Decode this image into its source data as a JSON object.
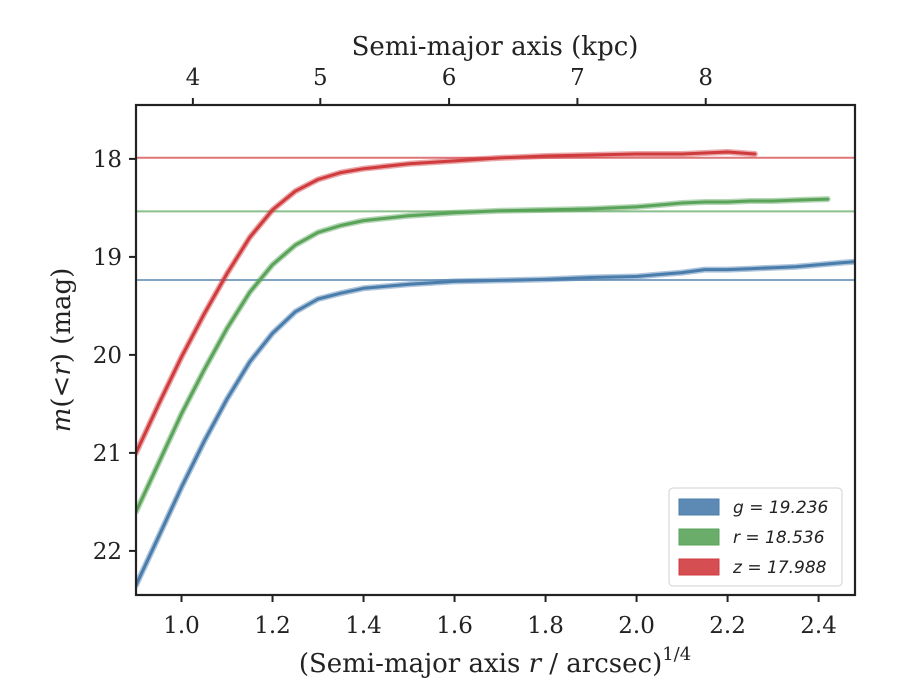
{
  "chart_data": {
    "type": "line",
    "xlabel_pre": "(Semi-major axis ",
    "xlabel_var": "r",
    "xlabel_post": " / arcsec)",
    "xlabel_sup": "1/4",
    "ylabel_var1": "m",
    "ylabel_open": "(",
    "ylabel_lt": "<",
    "ylabel_var2": "r",
    "ylabel_post": ") (mag)",
    "top_xlabel": "Semi-major axis (kpc)",
    "xlim": [
      0.9,
      2.48
    ],
    "ylim": [
      22.45,
      17.45
    ],
    "y_inverted": true,
    "x_ticks": [
      1.0,
      1.2,
      1.4,
      1.6,
      1.8,
      2.0,
      2.2,
      2.4
    ],
    "x_tick_labels": [
      "1.0",
      "1.2",
      "1.4",
      "1.6",
      "1.8",
      "2.0",
      "2.2",
      "2.4"
    ],
    "y_ticks": [
      18,
      19,
      20,
      21,
      22
    ],
    "y_tick_labels": [
      "18",
      "19",
      "20",
      "21",
      "22"
    ],
    "top_ticks": [
      4,
      5,
      6,
      7,
      8
    ],
    "top_tick_labels": [
      "4",
      "5",
      "6",
      "7",
      "8"
    ],
    "top_tick_x_positions": [
      1.025,
      1.305,
      1.588,
      1.87,
      2.152
    ],
    "legend_position": "lower right",
    "series": [
      {
        "name": "g = 19.236",
        "legend_label": "g = 19.236",
        "color": "#4a7dac",
        "asymptote": 19.236,
        "x": [
          0.9,
          0.95,
          1.0,
          1.05,
          1.1,
          1.15,
          1.2,
          1.25,
          1.3,
          1.35,
          1.4,
          1.5,
          1.6,
          1.7,
          1.8,
          1.9,
          2.0,
          2.05,
          2.1,
          2.15,
          2.2,
          2.25,
          2.3,
          2.35,
          2.4,
          2.45,
          2.48
        ],
        "y": [
          22.35,
          21.85,
          21.35,
          20.88,
          20.45,
          20.07,
          19.78,
          19.56,
          19.43,
          19.37,
          19.32,
          19.28,
          19.25,
          19.24,
          19.23,
          19.21,
          19.2,
          19.18,
          19.16,
          19.13,
          19.13,
          19.12,
          19.11,
          19.1,
          19.08,
          19.06,
          19.05
        ]
      },
      {
        "name": "r = 18.536",
        "legend_label": "r = 18.536",
        "color": "#5aa45a",
        "asymptote": 18.536,
        "x": [
          0.9,
          0.95,
          1.0,
          1.05,
          1.1,
          1.15,
          1.2,
          1.25,
          1.3,
          1.35,
          1.4,
          1.5,
          1.6,
          1.7,
          1.8,
          1.9,
          2.0,
          2.05,
          2.1,
          2.15,
          2.2,
          2.25,
          2.3,
          2.35,
          2.42
        ],
        "y": [
          21.6,
          21.1,
          20.6,
          20.15,
          19.73,
          19.36,
          19.08,
          18.88,
          18.75,
          18.68,
          18.63,
          18.58,
          18.55,
          18.53,
          18.52,
          18.51,
          18.49,
          18.47,
          18.45,
          18.44,
          18.44,
          18.43,
          18.43,
          18.42,
          18.41
        ]
      },
      {
        "name": "z = 17.988",
        "legend_label": "z = 17.988",
        "color": "#d03b3e",
        "asymptote": 17.988,
        "x": [
          0.9,
          0.95,
          1.0,
          1.05,
          1.1,
          1.15,
          1.2,
          1.25,
          1.3,
          1.35,
          1.4,
          1.5,
          1.6,
          1.7,
          1.8,
          1.9,
          2.0,
          2.1,
          2.15,
          2.2,
          2.26
        ],
        "y": [
          21.0,
          20.5,
          20.02,
          19.58,
          19.17,
          18.8,
          18.52,
          18.33,
          18.21,
          18.14,
          18.1,
          18.05,
          18.02,
          17.99,
          17.97,
          17.96,
          17.95,
          17.95,
          17.94,
          17.93,
          17.95
        ]
      }
    ]
  }
}
